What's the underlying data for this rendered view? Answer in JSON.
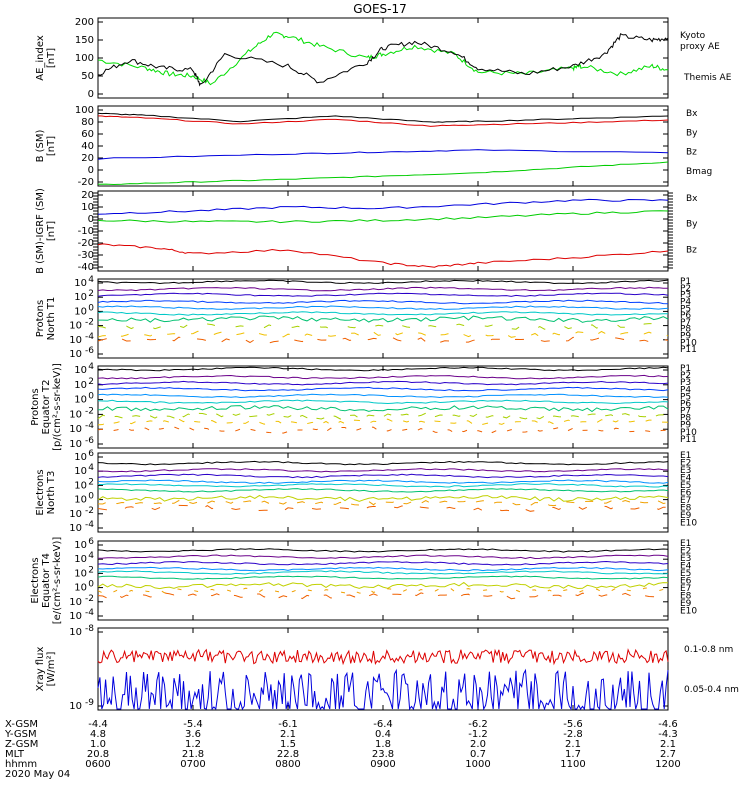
{
  "title": "GOES-17",
  "chart_data": [
    {
      "type": "line",
      "ylabel": [
        "AE_index",
        "[nT]"
      ],
      "yticks": [
        "200",
        "150",
        "100",
        "50",
        "0"
      ],
      "ylim": [
        0,
        200
      ],
      "series": [
        {
          "name": "Kyoto proxy AE",
          "color": "#00dd00",
          "x": [
            600,
            630,
            645,
            700,
            712,
            735,
            750,
            800,
            820,
            850,
            900,
            920,
            945,
            1000,
            1030,
            1100,
            1105,
            1130,
            1150,
            1200
          ],
          "values": [
            95,
            75,
            60,
            55,
            35,
            115,
            160,
            155,
            130,
            100,
            110,
            130,
            110,
            65,
            60,
            75,
            80,
            60,
            80,
            70
          ]
        },
        {
          "name": "Themis AE",
          "color": "#000000",
          "x": [
            600,
            620,
            640,
            700,
            705,
            720,
            800,
            820,
            850,
            900,
            920,
            945,
            1000,
            1030,
            1100,
            1120,
            1130,
            1150,
            1200
          ],
          "values": [
            60,
            95,
            75,
            70,
            30,
            110,
            80,
            40,
            90,
            125,
            140,
            115,
            75,
            60,
            80,
            110,
            155,
            145,
            150
          ]
        }
      ]
    },
    {
      "type": "line",
      "ylabel": [
        "B (SM)",
        "[nT]"
      ],
      "yticks": [
        "100",
        "80",
        "60",
        "40",
        "20",
        "0",
        "-20"
      ],
      "ylim": [
        -20,
        100
      ],
      "series": [
        {
          "name": "Bx",
          "color": "#0000dd",
          "x": [
            600,
            800,
            900,
            1000,
            1200
          ],
          "values": [
            21,
            28,
            31,
            34,
            30
          ]
        },
        {
          "name": "By",
          "color": "#00cc00",
          "x": [
            600,
            700,
            800,
            900,
            1000,
            1100,
            1200
          ],
          "values": [
            -18,
            -14,
            -10,
            -5,
            0,
            8,
            16
          ]
        },
        {
          "name": "Bz",
          "color": "#dd0000",
          "x": [
            600,
            630,
            730,
            830,
            930,
            1000,
            1100,
            1200
          ],
          "values": [
            85,
            82,
            73,
            80,
            70,
            72,
            75,
            79
          ]
        },
        {
          "name": "Bmag",
          "color": "#000000",
          "x": [
            600,
            630,
            730,
            830,
            930,
            1000,
            1100,
            1200
          ],
          "values": [
            89,
            86,
            77,
            85,
            76,
            77,
            81,
            85
          ]
        }
      ]
    },
    {
      "type": "line",
      "ylabel": [
        "B (SM)-IGRF (SM)",
        "[nT]"
      ],
      "yticks": [
        "20",
        "10",
        "0",
        "-10",
        "-20",
        "-30",
        "-40"
      ],
      "ylim": [
        -40,
        20
      ],
      "series": [
        {
          "name": "Bx",
          "color": "#0000dd",
          "x": [
            600,
            700,
            800,
            900,
            1000,
            1100,
            1200
          ],
          "values": [
            3,
            5,
            8,
            7,
            10,
            13,
            13
          ]
        },
        {
          "name": "By",
          "color": "#00cc00",
          "x": [
            600,
            700,
            800,
            900,
            1000,
            1100,
            1200
          ],
          "values": [
            -2,
            -3,
            -3,
            -2,
            0,
            3,
            5
          ]
        },
        {
          "name": "Bz",
          "color": "#dd0000",
          "x": [
            600,
            640,
            700,
            800,
            900,
            930,
            1000,
            1100,
            1200
          ],
          "values": [
            -20,
            -23,
            -27,
            -24,
            -34,
            -37,
            -34,
            -30,
            -25
          ]
        }
      ]
    },
    {
      "type": "line",
      "ylabel": [
        "Protons",
        "North T1"
      ],
      "yticks": [
        "10^4",
        "10^2",
        "10^0",
        "10^-2",
        "10^-4",
        "10^-6"
      ],
      "ylim_log10": [
        -7,
        4
      ],
      "series_names": [
        "P1",
        "P2",
        "P3",
        "P4",
        "P5",
        "P6",
        "P7",
        "P8",
        "P9",
        "P10",
        "P11"
      ],
      "series_colors": [
        "#000000",
        "#6a008a",
        "#2a00c8",
        "#0040ff",
        "#0090ff",
        "#00c8c8",
        "#00c070",
        "#a8d000",
        "#f0c000",
        "#f06000",
        "#d00000"
      ],
      "levels_log10": [
        3.6,
        2.6,
        1.8,
        0.8,
        0.0,
        -0.8,
        -1.6,
        -2.6,
        -3.7,
        -4.5,
        null
      ]
    },
    {
      "type": "line",
      "ylabel": [
        "Protons",
        "Equator T2",
        "[p/(cm²-s-sr-keV)]"
      ],
      "yticks": [
        "10^4",
        "10^2",
        "10^0",
        "10^-2",
        "10^-4",
        "10^-6"
      ],
      "ylim_log10": [
        -7,
        4
      ],
      "series_names": [
        "P1",
        "P2",
        "P3",
        "P4",
        "P5",
        "P6",
        "P7",
        "P8",
        "P9",
        "P10",
        "P11"
      ],
      "series_colors": [
        "#000000",
        "#6a008a",
        "#2a00c8",
        "#0040ff",
        "#0090ff",
        "#00c8c8",
        "#00c070",
        "#a8d000",
        "#f0c000",
        "#f06000",
        "#d00000"
      ],
      "levels_log10": [
        3.6,
        2.5,
        1.7,
        0.9,
        0.0,
        -0.8,
        -1.7,
        -2.7,
        -3.5,
        -4.6,
        null
      ]
    },
    {
      "type": "line",
      "ylabel": [
        "Electrons",
        "North T3"
      ],
      "yticks": [
        "10^6",
        "10^4",
        "10^2",
        "10^0",
        "10^-2",
        "10^-4"
      ],
      "ylim_log10": [
        -5,
        6
      ],
      "series_names": [
        "E1",
        "E2",
        "E3",
        "E4",
        "E5",
        "E6",
        "E7",
        "E8",
        "E9",
        "E10"
      ],
      "series_colors": [
        "#000000",
        "#6a008a",
        "#2a00c8",
        "#0090ff",
        "#00c8c8",
        "#00c070",
        "#c0d000",
        "#f0a000",
        "#f06000",
        "#d00000"
      ],
      "levels_log10": [
        4.6,
        3.6,
        2.8,
        2.0,
        1.5,
        0.8,
        -0.3,
        -0.9,
        -1.7,
        null
      ]
    },
    {
      "type": "line",
      "ylabel": [
        "Electrons",
        "Equator T4",
        "[e/(cm²-s-sr-keV)]"
      ],
      "yticks": [
        "10^6",
        "10^4",
        "10^2",
        "10^0",
        "10^-2",
        "10^-4"
      ],
      "ylim_log10": [
        -5,
        6
      ],
      "series_names": [
        "E1",
        "E2",
        "E3",
        "E4",
        "E5",
        "E6",
        "E7",
        "E8",
        "E9",
        "E10"
      ],
      "series_colors": [
        "#000000",
        "#6a008a",
        "#2a00c8",
        "#0090ff",
        "#00c8c8",
        "#00c070",
        "#c0d000",
        "#f0a000",
        "#f06000",
        "#d00000"
      ],
      "levels_log10": [
        4.7,
        3.8,
        2.9,
        2.1,
        1.6,
        0.9,
        -0.2,
        -0.9,
        -1.6,
        null
      ]
    },
    {
      "type": "line",
      "ylabel": [
        "Xray flux",
        "[W/m²]"
      ],
      "yticks": [
        "10^-8",
        "10^-9"
      ],
      "ylim_log10": [
        -9,
        -8
      ],
      "series": [
        {
          "name": "0.1-0.8 nm",
          "color": "#dd0000",
          "level_log10": -8.35
        },
        {
          "name": "0.05-0.4 nm",
          "color": "#0000dd",
          "level_log10": -8.85
        }
      ]
    }
  ],
  "ephemeris": {
    "row_labels": [
      "X-GSM",
      "Y-GSM",
      "Z-GSM",
      "MLT",
      "hhmm"
    ],
    "columns": [
      [
        "-4.4",
        "4.8",
        "1.0",
        "20.8",
        "0600"
      ],
      [
        "-5.4",
        "3.6",
        "1.2",
        "21.8",
        "0700"
      ],
      [
        "-6.1",
        "2.1",
        "1.5",
        "22.8",
        "0800"
      ],
      [
        "-6.4",
        "0.4",
        "1.8",
        "23.8",
        "0900"
      ],
      [
        "-6.2",
        "-1.2",
        "2.0",
        "0.7",
        "1000"
      ],
      [
        "-5.6",
        "-2.8",
        "2.1",
        "1.7",
        "1100"
      ],
      [
        "-4.6",
        "-4.3",
        "2.1",
        "2.7",
        "1200"
      ]
    ],
    "date": "2020 May 04"
  }
}
